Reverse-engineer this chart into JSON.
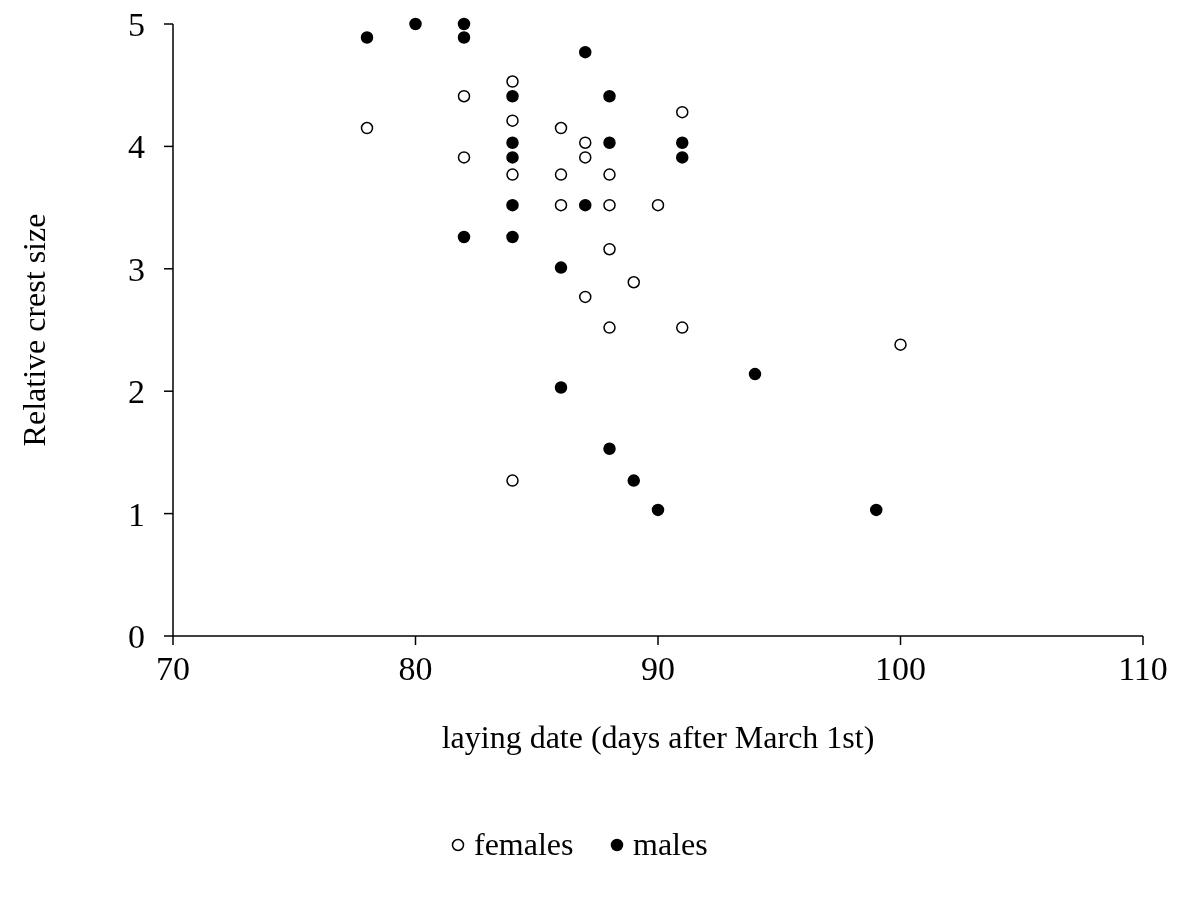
{
  "chart_data": {
    "type": "scatter",
    "xlabel": "laying date (days after March 1st)",
    "ylabel": "Relative crest size",
    "xlim": [
      70,
      110
    ],
    "ylim": [
      0,
      5
    ],
    "xticks": [
      70,
      80,
      90,
      100,
      110
    ],
    "yticks": [
      0,
      1,
      2,
      3,
      4,
      5
    ],
    "grid": false,
    "legend": "bottom",
    "marker": "circle",
    "series": [
      {
        "name": "females",
        "color": "#ffffff",
        "x": [
          78,
          82,
          82,
          84,
          84,
          84,
          84,
          86,
          86,
          86,
          87,
          87,
          87,
          88,
          88,
          88,
          88,
          89,
          90,
          91,
          91,
          100
        ],
        "values": [
          4.15,
          4.41,
          3.91,
          4.53,
          4.21,
          3.77,
          1.27,
          4.15,
          3.77,
          3.52,
          4.03,
          3.91,
          2.77,
          3.77,
          3.52,
          3.16,
          2.52,
          2.89,
          3.52,
          4.28,
          2.52,
          2.38
        ]
      },
      {
        "name": "males",
        "color": "#000000",
        "x": [
          78,
          80,
          82,
          82,
          82,
          84,
          84,
          84,
          84,
          84,
          87,
          87,
          86,
          86,
          88,
          88,
          88,
          89,
          90,
          91,
          91,
          94,
          99
        ],
        "values": [
          4.89,
          5,
          5,
          4.89,
          3.26,
          4.41,
          4.03,
          3.91,
          3.52,
          3.26,
          4.77,
          3.52,
          3.01,
          2.03,
          4.41,
          4.03,
          1.53,
          1.27,
          1.03,
          4.03,
          3.91,
          2.14,
          1.03
        ]
      }
    ]
  }
}
